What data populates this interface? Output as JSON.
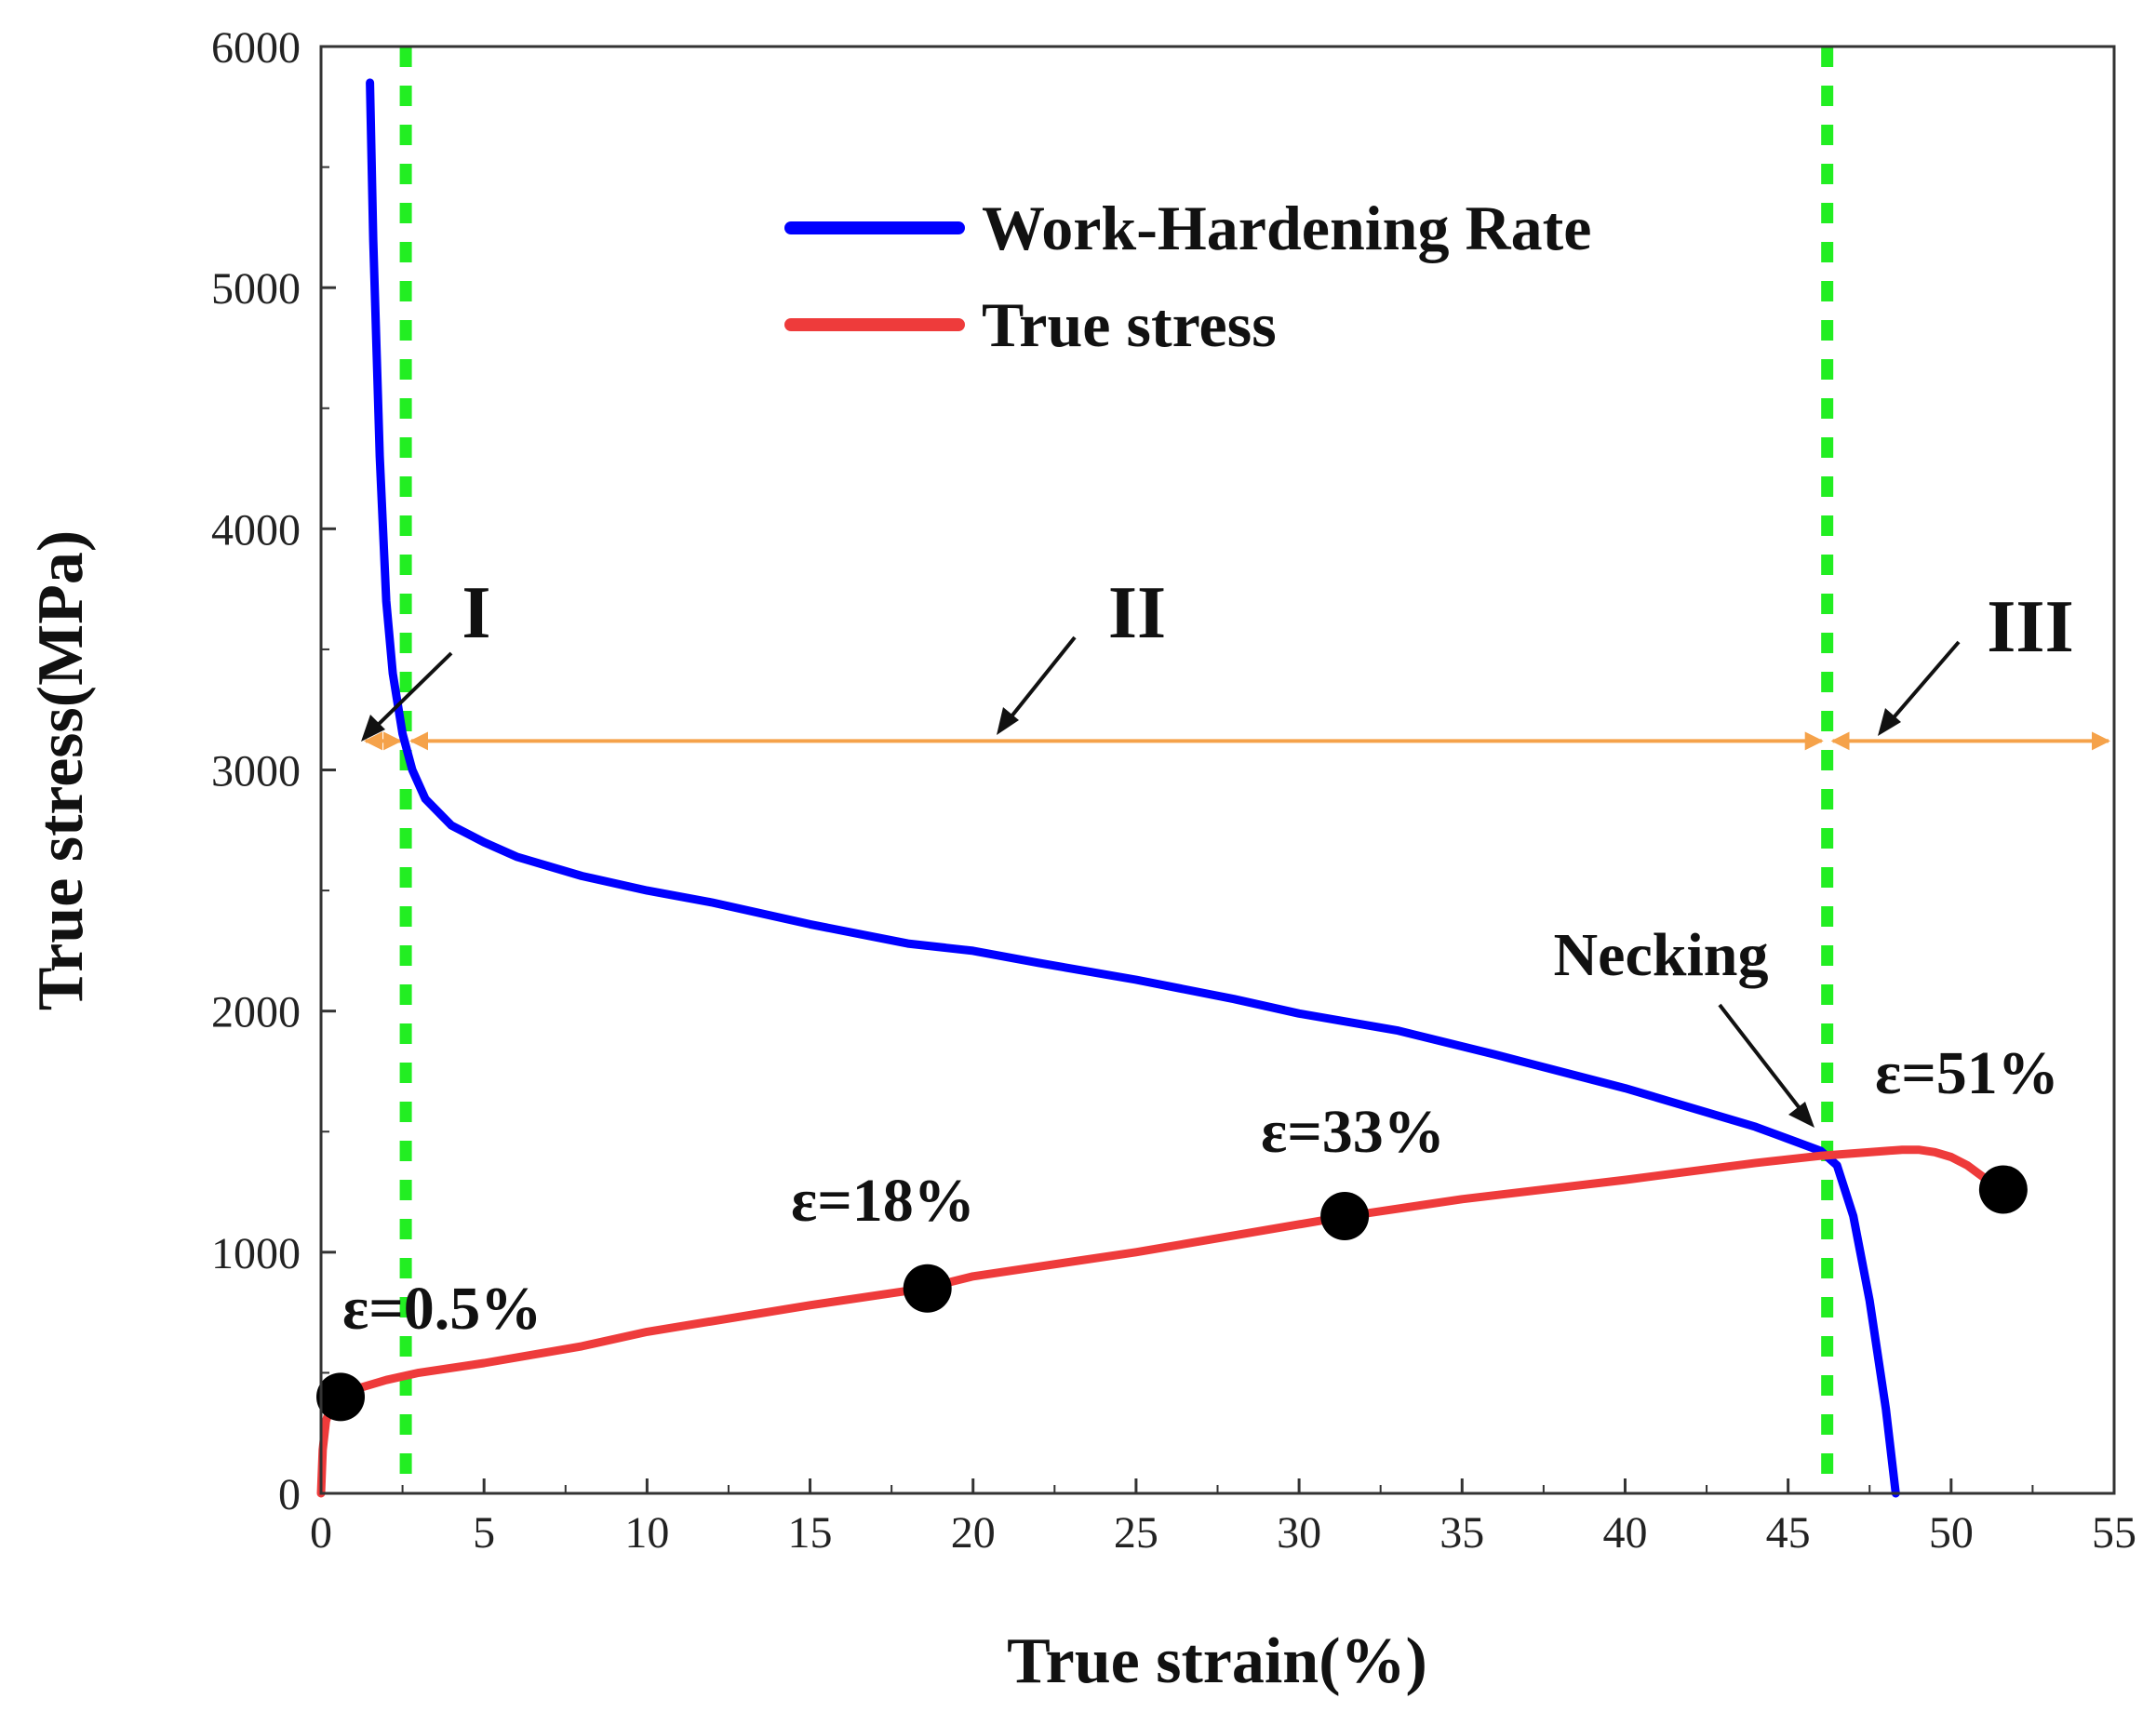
{
  "chart_data": {
    "type": "line",
    "xlabel": "True strain(%)",
    "ylabel": "True stress(MPa)",
    "xlim": [
      0,
      55
    ],
    "ylim": [
      0,
      6000
    ],
    "x_ticks": [
      0,
      5,
      10,
      15,
      20,
      25,
      30,
      35,
      40,
      45,
      50,
      55
    ],
    "y_ticks": [
      0,
      1000,
      2000,
      3000,
      4000,
      5000,
      6000
    ],
    "grid": false,
    "legend_position": "top-center",
    "series": [
      {
        "name": "Work-Hardening Rate",
        "color": "#0000ff",
        "x": [
          1.5,
          1.6,
          1.8,
          2.0,
          2.2,
          2.5,
          2.8,
          3.2,
          4.0,
          5.0,
          6.0,
          8.0,
          10.0,
          12.0,
          15.0,
          18.0,
          20.0,
          22.0,
          25.0,
          28.0,
          30.0,
          33.0,
          36.0,
          40.0,
          42.0,
          44.0,
          45.0,
          46.0,
          46.5,
          47.0,
          47.5,
          48.0,
          48.3
        ],
        "values": [
          5850,
          5200,
          4300,
          3700,
          3400,
          3150,
          3000,
          2880,
          2770,
          2700,
          2640,
          2560,
          2500,
          2450,
          2360,
          2280,
          2250,
          2200,
          2130,
          2050,
          1990,
          1920,
          1820,
          1680,
          1600,
          1520,
          1470,
          1420,
          1360,
          1150,
          800,
          350,
          0
        ]
      },
      {
        "name": "True stress",
        "color": "#ee3b3b",
        "x": [
          0.0,
          0.05,
          0.15,
          0.3,
          0.5,
          1.0,
          2.0,
          3.0,
          5.0,
          8.0,
          10.0,
          15.0,
          18.5,
          20.0,
          25.0,
          31.5,
          35.0,
          40.0,
          44.0,
          46.0,
          47.0,
          48.0,
          48.5,
          49.0,
          49.5,
          50.0,
          50.5,
          51.0,
          51.5
        ],
        "values": [
          0,
          180,
          300,
          360,
          400,
          430,
          470,
          500,
          540,
          610,
          670,
          780,
          850,
          900,
          1000,
          1150,
          1220,
          1300,
          1370,
          1400,
          1410,
          1420,
          1425,
          1425,
          1415,
          1395,
          1360,
          1310,
          1260
        ]
      }
    ],
    "points": [
      {
        "label": "ε=0.5%",
        "x": 0.6,
        "y": 400
      },
      {
        "label": "ε=18%",
        "x": 18.6,
        "y": 850
      },
      {
        "label": "ε=33%",
        "x": 31.4,
        "y": 1150
      },
      {
        "label": "ε=51%",
        "x": 51.6,
        "y": 1260
      }
    ],
    "annotations": [
      {
        "text": "Necking",
        "x": 46.2,
        "y": 1420
      }
    ],
    "vertical_lines": [
      {
        "x": 2.6,
        "color": "#22ee22",
        "style": "dotted"
      },
      {
        "x": 46.2,
        "color": "#22ee22",
        "style": "dotted"
      }
    ],
    "regions": {
      "y": 3120,
      "color": "#f5a24a",
      "items": [
        {
          "label": "I",
          "x_start": 1.2,
          "x_end": 2.6
        },
        {
          "label": "II",
          "x_start": 2.6,
          "x_end": 46.2
        },
        {
          "label": "III",
          "x_start": 46.2,
          "x_end": 55.0
        }
      ]
    }
  }
}
